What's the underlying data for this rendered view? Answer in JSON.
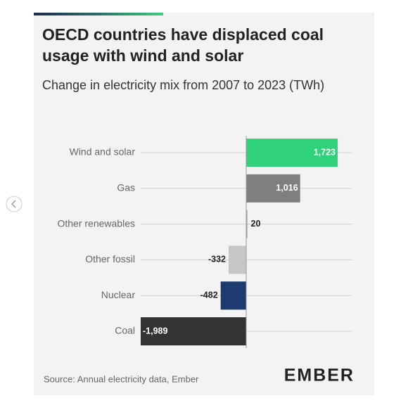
{
  "chart_data": {
    "type": "barh",
    "title": "OECD countries have displaced coal usage with wind and solar",
    "subtitle": "Change in electricity mix from 2007 to 2023 (TWh)",
    "categories": [
      "Wind and solar",
      "Gas",
      "Other renewables",
      "Other fossil",
      "Nuclear",
      "Coal"
    ],
    "values": [
      1723,
      1016,
      20,
      -332,
      -482,
      -1989
    ],
    "value_labels": [
      "1,723",
      "1,016",
      "20",
      "-332",
      "-482",
      "-1,989"
    ],
    "colors": [
      "#2fd17a",
      "#7f7f7f",
      "#9a9a9a",
      "#c6c6c6",
      "#1f3a70",
      "#333333"
    ],
    "grid": true,
    "source": "Source: Annual electricity data, Ember"
  },
  "logo": "EMBER"
}
